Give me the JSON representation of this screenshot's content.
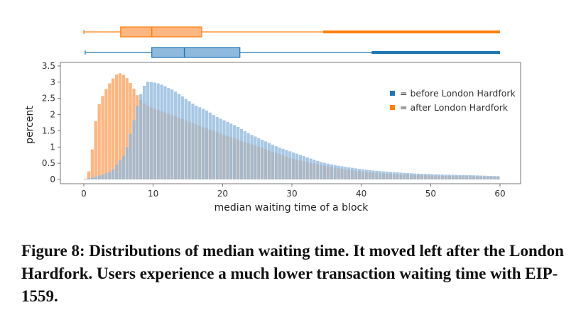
{
  "chart_data": {
    "type": "bar",
    "subtype": "overlaid histogram with marginal box plots",
    "xlabel": "median waiting time of a block",
    "ylabel": "percent",
    "xlim": [
      0,
      60
    ],
    "ylim": [
      0,
      3.5
    ],
    "x_ticks": [
      "0",
      "10",
      "20",
      "30",
      "40",
      "50",
      "60"
    ],
    "y_ticks": [
      "0",
      "0.5",
      "1",
      "1.5",
      "2",
      "2.5",
      "3",
      "3.5"
    ],
    "legend_position": "top-right",
    "bin_width": 0.5,
    "series": [
      {
        "name": "= before London Hardfork",
        "color": "#1f77b4",
        "bar_color": "#8fb9dd",
        "bins": [
          [
            0,
            0
          ],
          [
            2,
            0.1
          ],
          [
            4,
            0.25
          ],
          [
            6,
            0.8
          ],
          [
            7,
            1.6
          ],
          [
            8,
            2.5
          ],
          [
            9,
            3.02
          ],
          [
            10,
            3.0
          ],
          [
            11,
            2.95
          ],
          [
            12,
            2.85
          ],
          [
            13,
            2.75
          ],
          [
            14,
            2.6
          ],
          [
            15,
            2.45
          ],
          [
            16,
            2.3
          ],
          [
            17,
            2.2
          ],
          [
            18,
            2.1
          ],
          [
            19,
            1.95
          ],
          [
            20,
            1.85
          ],
          [
            22,
            1.65
          ],
          [
            24,
            1.4
          ],
          [
            26,
            1.2
          ],
          [
            28,
            1.0
          ],
          [
            30,
            0.85
          ],
          [
            32,
            0.7
          ],
          [
            34,
            0.55
          ],
          [
            36,
            0.45
          ],
          [
            38,
            0.38
          ],
          [
            40,
            0.32
          ],
          [
            42,
            0.27
          ],
          [
            45,
            0.22
          ],
          [
            48,
            0.18
          ],
          [
            52,
            0.15
          ],
          [
            56,
            0.13
          ],
          [
            60,
            0.1
          ]
        ],
        "box": {
          "min": 0.2,
          "q1": 9.8,
          "median": 14.5,
          "q3": 22.5,
          "whisker_high": 41.5,
          "max": 60
        }
      },
      {
        "name": "= after London Hardfork",
        "color": "#ff7f0e",
        "bar_color": "#fdb681",
        "bins": [
          [
            0,
            0
          ],
          [
            0.5,
            0.05
          ],
          [
            1,
            0.45
          ],
          [
            1.5,
            1.4
          ],
          [
            2,
            2.2
          ],
          [
            3,
            2.7
          ],
          [
            4,
            3.05
          ],
          [
            5,
            3.3
          ],
          [
            6,
            3.2
          ],
          [
            7,
            2.9
          ],
          [
            8,
            2.5
          ],
          [
            9,
            2.3
          ],
          [
            10,
            2.2
          ],
          [
            12,
            2.05
          ],
          [
            14,
            1.88
          ],
          [
            16,
            1.72
          ],
          [
            18,
            1.55
          ],
          [
            20,
            1.4
          ],
          [
            22,
            1.25
          ],
          [
            24,
            1.1
          ],
          [
            26,
            0.95
          ],
          [
            28,
            0.8
          ],
          [
            30,
            0.65
          ],
          [
            32,
            0.55
          ],
          [
            34,
            0.45
          ],
          [
            36,
            0.38
          ],
          [
            38,
            0.3
          ],
          [
            40,
            0.25
          ],
          [
            42,
            0.2
          ],
          [
            45,
            0.16
          ],
          [
            50,
            0.12
          ],
          [
            55,
            0.1
          ],
          [
            60,
            0.08
          ]
        ],
        "box": {
          "min": 0.0,
          "q1": 5.3,
          "median": 9.8,
          "q3": 17.0,
          "whisker_high": 34.5,
          "max": 60
        }
      }
    ]
  },
  "caption": "Figure 8: Distributions of median waiting time. It moved left after the London Hardfork. Users experience a much lower transaction waiting time with EIP-1559."
}
